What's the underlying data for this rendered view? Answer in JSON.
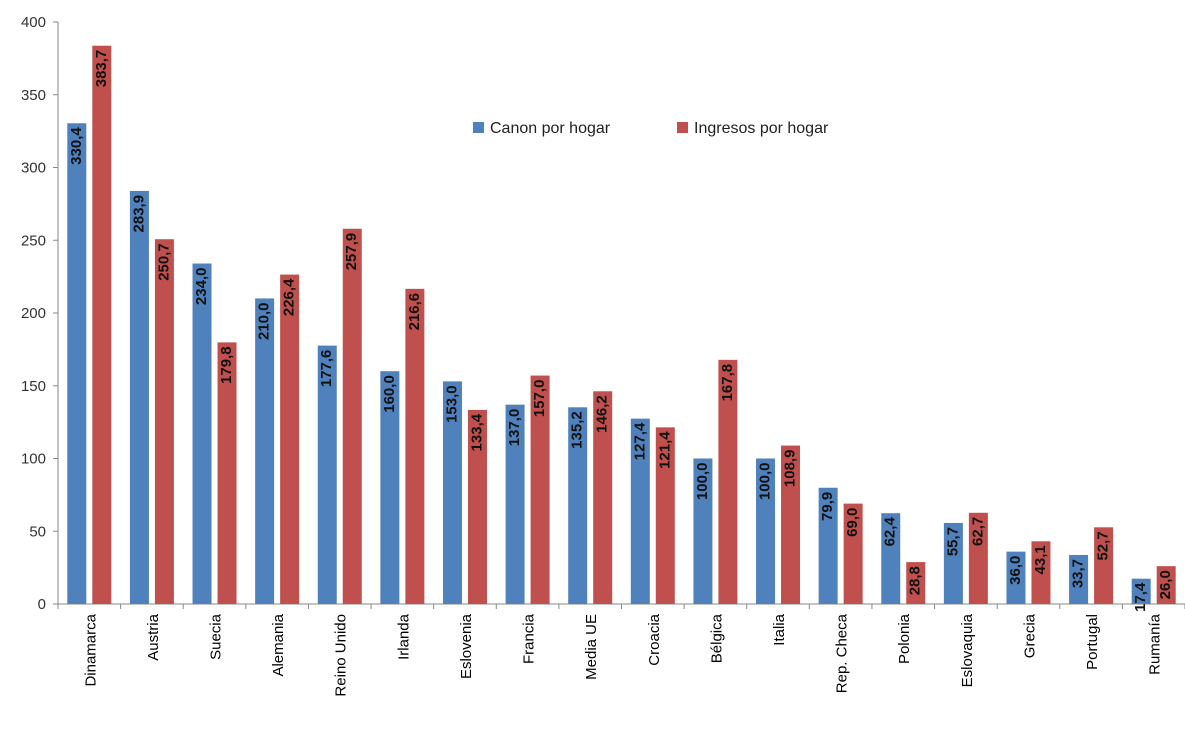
{
  "chart_data": {
    "type": "bar",
    "categories": [
      "Dinamarca",
      "Austria",
      "Suecia",
      "Alemania",
      "Reino Unido",
      "Irlanda",
      "Eslovenia",
      "Francia",
      "Media UE",
      "Croacia",
      "Bélgica",
      "Italia",
      "Rep. Checa",
      "Polonia",
      "Eslovaquia",
      "Grecia",
      "Portugal",
      "Rumanía"
    ],
    "series": [
      {
        "name": "Canon por hogar",
        "color": "#4F81BD",
        "values": [
          330.4,
          283.9,
          234.0,
          210.0,
          177.6,
          160.0,
          153.0,
          137.0,
          135.2,
          127.4,
          100.0,
          100.0,
          79.9,
          62.4,
          55.7,
          36.0,
          33.7,
          17.4
        ],
        "labels": [
          "330,4",
          "283,9",
          "234,0",
          "210,0",
          "177,6",
          "160,0",
          "153,0",
          "137,0",
          "135,2",
          "127,4",
          "100,0",
          "100,0",
          "79,9",
          "62,4",
          "55,7",
          "36,0",
          "33,7",
          "17,4"
        ]
      },
      {
        "name": "Ingresos por hogar",
        "color": "#C0504D",
        "values": [
          383.7,
          250.7,
          179.8,
          226.4,
          257.9,
          216.6,
          133.4,
          157.0,
          146.2,
          121.4,
          167.8,
          108.9,
          69.0,
          28.8,
          62.7,
          43.1,
          52.7,
          26.0
        ],
        "labels": [
          "383,7",
          "250,7",
          "179,8",
          "226,4",
          "257,9",
          "216,6",
          "133,4",
          "157,0",
          "146,2",
          "121,4",
          "167,8",
          "108,9",
          "69,0",
          "28,8",
          "62,7",
          "43,1",
          "52,7",
          "26,0"
        ]
      }
    ],
    "ylim": [
      0,
      400
    ],
    "yticks": [
      0,
      50,
      100,
      150,
      200,
      250,
      300,
      350,
      400
    ],
    "title": "",
    "xlabel": "",
    "ylabel": "",
    "grid": false,
    "legend_position": "top-center"
  }
}
